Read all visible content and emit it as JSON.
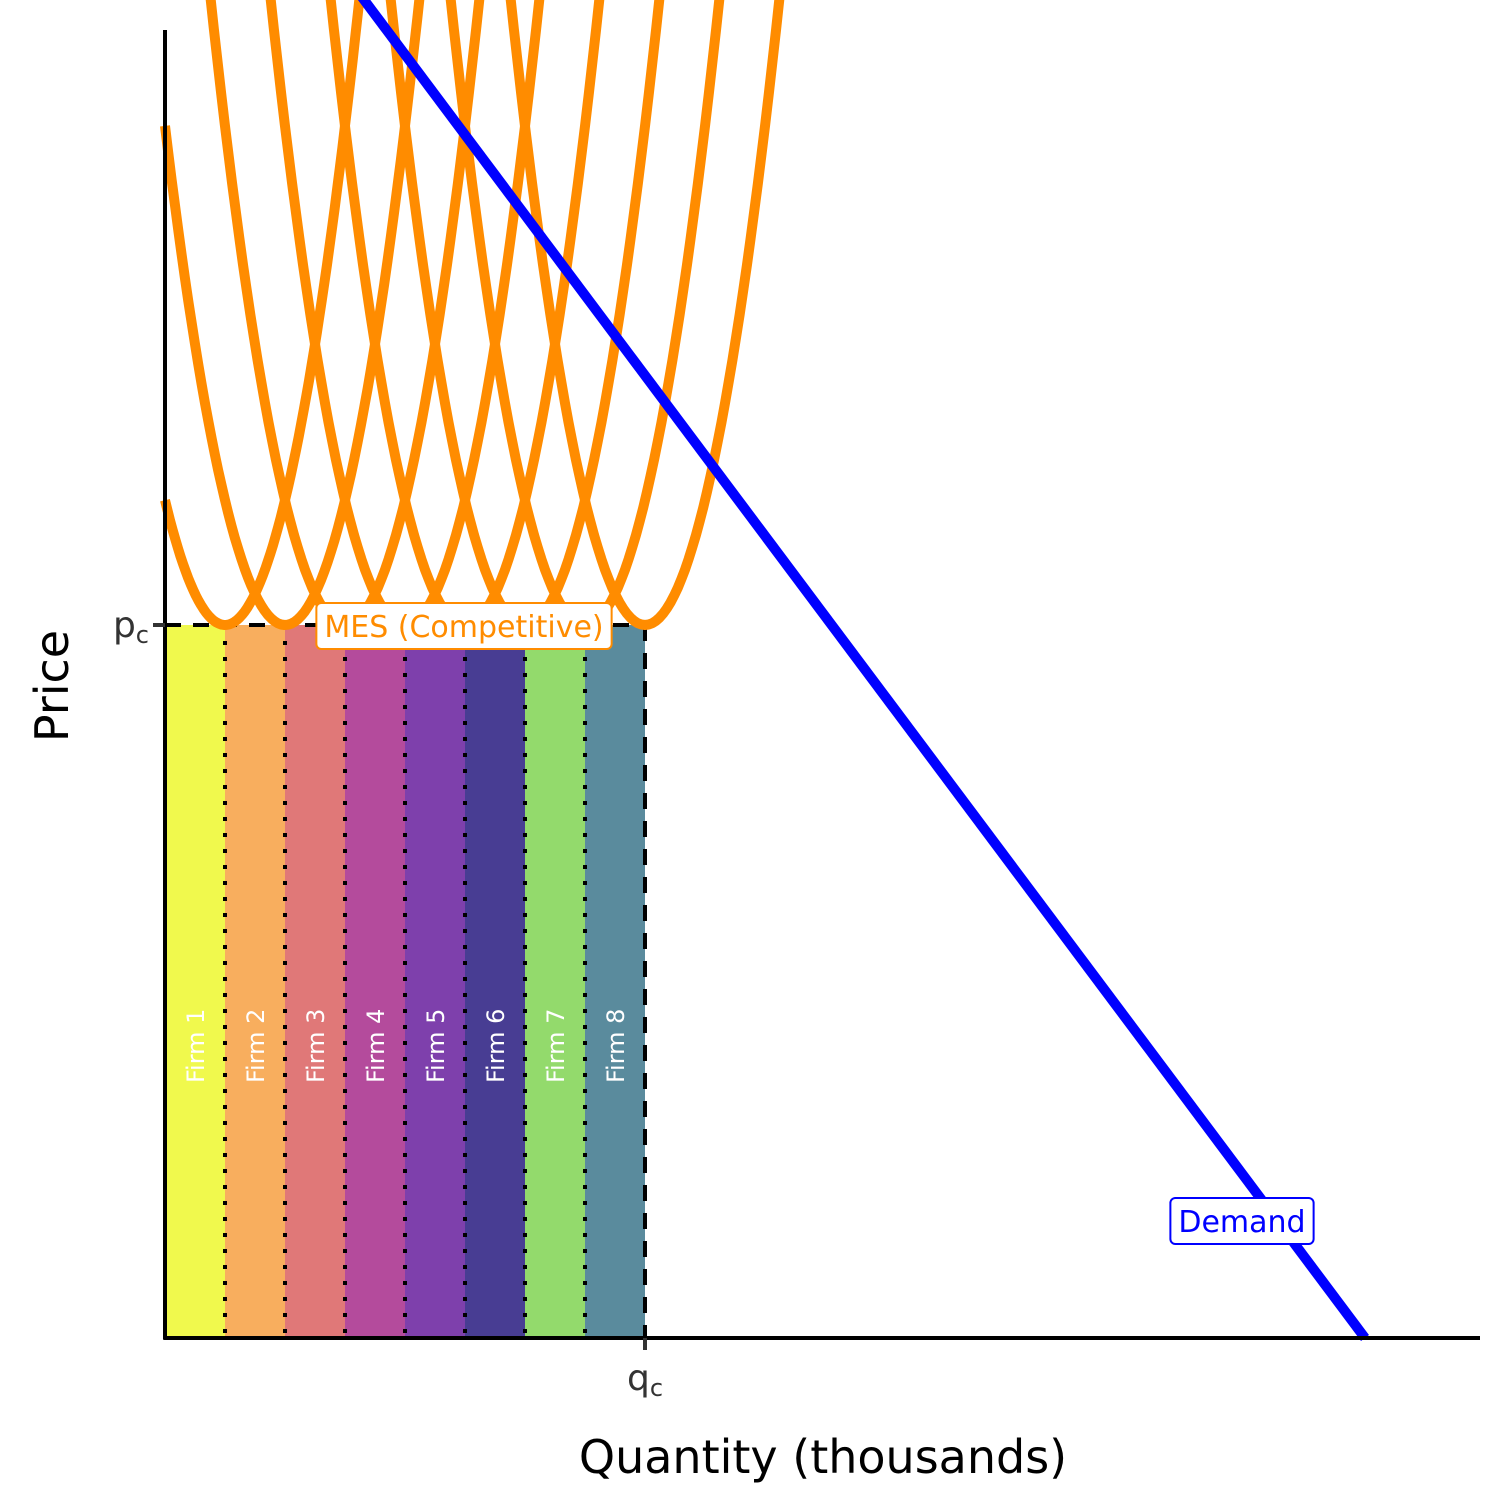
{
  "chart_data": {
    "type": "line",
    "title": "",
    "xlabel": "Quantity (thousands)",
    "ylabel": "Price",
    "xlim": [
      0,
      22
    ],
    "ylim": [
      0,
      20
    ],
    "grid": false,
    "ticks": {
      "x": [
        {
          "value": 8,
          "label": "q",
          "sub": "c"
        }
      ],
      "y": [
        {
          "value": 8,
          "label": "p",
          "sub": "c"
        }
      ]
    },
    "demand": {
      "name": "Demand",
      "label": "Demand",
      "color": "#0000ff",
      "points": [
        [
          0,
          18
        ],
        [
          20,
          0
        ]
      ]
    },
    "cost_curves": {
      "label": "MES (Competitive)",
      "color": "#ff8c00",
      "min_price": 8,
      "curvature": 1.4,
      "top_price": 16.25,
      "bottom_x_first": 0.5,
      "min_x": [
        1,
        2,
        3,
        4,
        5,
        6,
        7,
        8
      ]
    },
    "firms": [
      {
        "label": "Firm 1",
        "x0": 0,
        "x1": 1,
        "color": "#f0f94d"
      },
      {
        "label": "Firm 2",
        "x0": 1,
        "x1": 2,
        "color": "#f8ae5e"
      },
      {
        "label": "Firm 3",
        "x0": 2,
        "x1": 3,
        "color": "#e07878"
      },
      {
        "label": "Firm 4",
        "x0": 3,
        "x1": 4,
        "color": "#b44b9c"
      },
      {
        "label": "Firm 5",
        "x0": 4,
        "x1": 5,
        "color": "#7e40ac"
      },
      {
        "label": "Firm 6",
        "x0": 5,
        "x1": 6,
        "color": "#483d93"
      },
      {
        "label": "Firm 7",
        "x0": 6,
        "x1": 7,
        "color": "#93da6c"
      },
      {
        "label": "Firm 8",
        "x0": 7,
        "x1": 8,
        "color": "#5a8b9d"
      }
    ],
    "competitive_quantity": 8,
    "competitive_price": 8
  }
}
